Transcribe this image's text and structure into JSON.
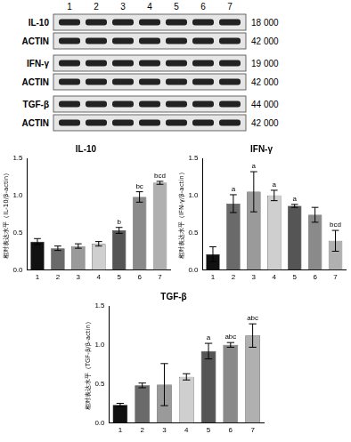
{
  "blot": {
    "lanes": [
      1,
      2,
      3,
      4,
      5,
      6,
      7
    ],
    "rows": [
      {
        "label": "IL-10",
        "size": "18 000"
      },
      {
        "label": "ACTIN",
        "size": "42 000"
      },
      {
        "label": "IFN-γ",
        "size": "19 000"
      },
      {
        "label": "ACTIN",
        "size": "42 000"
      },
      {
        "label": "TGF-β",
        "size": "44 000"
      },
      {
        "label": "ACTIN",
        "size": "42 000"
      }
    ]
  },
  "chart_data": [
    {
      "type": "bar",
      "title": "IL-10",
      "y_label": "相对表达水平（IL-10/β-actin）",
      "categories": [
        "1",
        "2",
        "3",
        "4",
        "5",
        "6",
        "7"
      ],
      "values": [
        0.38,
        0.29,
        0.32,
        0.35,
        0.53,
        0.98,
        1.17
      ],
      "errors": [
        0.04,
        0.03,
        0.03,
        0.03,
        0.04,
        0.07,
        0.02
      ],
      "significance": [
        null,
        null,
        null,
        null,
        "b",
        "bc",
        "bcd"
      ],
      "colors": [
        "#111111",
        "#6a6a6a",
        "#9a9a9a",
        "#cfcfcf",
        "#555555",
        "#8a8a8a",
        "#b0b0b0"
      ],
      "ylim": [
        0,
        1.5
      ],
      "yticks": [
        {
          "value": 0,
          "label": "0.0"
        },
        0.5,
        {
          "value": 1,
          "label": "1.0"
        },
        1.5
      ],
      "grid": false
    },
    {
      "type": "bar",
      "title": "IFN-γ",
      "y_label": "相对表达水平（IFN-γ/β-actin）",
      "categories": [
        "1",
        "2",
        "3",
        "4",
        "5",
        "6",
        "7"
      ],
      "values": [
        0.21,
        0.89,
        1.05,
        1.0,
        0.86,
        0.74,
        0.39
      ],
      "errors": [
        0.1,
        0.12,
        0.27,
        0.07,
        0.02,
        0.1,
        0.14
      ],
      "significance": [
        null,
        "a",
        "a",
        "a",
        "a",
        null,
        "bcd"
      ],
      "colors": [
        "#111111",
        "#6a6a6a",
        "#9a9a9a",
        "#cfcfcf",
        "#555555",
        "#8a8a8a",
        "#b0b0b0"
      ],
      "ylim": [
        0,
        1.5
      ],
      "yticks": [
        {
          "value": 0,
          "label": "0.0"
        },
        0.5,
        {
          "value": 1,
          "label": "1.0"
        },
        1.5
      ],
      "grid": false
    },
    {
      "type": "bar",
      "title": "TGF-β",
      "y_label": "相对表达水平（TGF-β/β-actin）",
      "categories": [
        "1",
        "2",
        "3",
        "4",
        "5",
        "6",
        "7"
      ],
      "values": [
        0.23,
        0.48,
        0.49,
        0.59,
        0.92,
        1.0,
        1.12
      ],
      "errors": [
        0.02,
        0.03,
        0.27,
        0.04,
        0.1,
        0.03,
        0.15
      ],
      "significance": [
        null,
        null,
        null,
        null,
        "a",
        "abc",
        "abc"
      ],
      "colors": [
        "#111111",
        "#6a6a6a",
        "#9a9a9a",
        "#cfcfcf",
        "#555555",
        "#8a8a8a",
        "#b0b0b0"
      ],
      "ylim": [
        0,
        1.5
      ],
      "yticks": [
        {
          "value": 0,
          "label": "0.0"
        },
        0.5,
        {
          "value": 1,
          "label": "1.0"
        },
        1.5
      ],
      "grid": false
    }
  ]
}
